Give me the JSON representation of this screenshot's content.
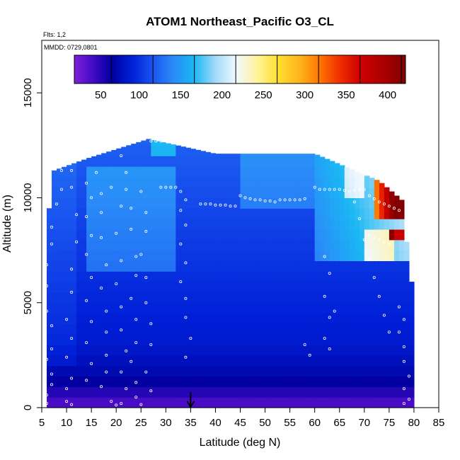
{
  "chart_data": {
    "type": "heatmap",
    "title": "ATOM1 Northeast_Pacific O3_CL",
    "annotations": [
      "Flts: 1,2",
      "MMDD: 0729,0801"
    ],
    "xlabel": "Latitude (deg N)",
    "ylabel": "Altitude (m)",
    "xlim": [
      5,
      85
    ],
    "ylim": [
      0,
      17500
    ],
    "x_ticks": [
      "5",
      "10",
      "15",
      "20",
      "25",
      "30",
      "35",
      "40",
      "45",
      "50",
      "55",
      "60",
      "65",
      "70",
      "75",
      "80",
      "85"
    ],
    "y_ticks": [
      "0",
      "5000",
      "10000",
      "15000"
    ],
    "colorbar": {
      "range": [
        5,
        405
      ],
      "ticks": [
        "50",
        "100",
        "150",
        "200",
        "250",
        "300",
        "350",
        "400"
      ],
      "placement": "top-inside"
    },
    "marker": {
      "latitude": 35,
      "symbol": "down-arrow"
    },
    "grid": false,
    "data_extent_altitude_by_latitude": [
      {
        "lat": 6.5,
        "top": 9500
      },
      {
        "lat": 7.5,
        "top": 11300
      },
      {
        "lat": 14.5,
        "top": 11900
      },
      {
        "lat": 26.5,
        "top": 12800
      },
      {
        "lat": 40,
        "top": 12100
      },
      {
        "lat": 60,
        "top": 12100
      },
      {
        "lat": 68,
        "top": 11300
      },
      {
        "lat": 73,
        "top": 10800
      },
      {
        "lat": 78,
        "top": 9800
      },
      {
        "lat": 79,
        "top": 6000
      },
      {
        "lat": 80,
        "top": 6000
      }
    ],
    "flight_track_points": [
      [
        9,
        11300
      ],
      [
        9,
        10400
      ],
      [
        8,
        9700
      ],
      [
        7,
        8600
      ],
      [
        7,
        7800
      ],
      [
        6,
        6800
      ],
      [
        6,
        5800
      ],
      [
        6,
        4600
      ],
      [
        7,
        3900
      ],
      [
        7,
        2800
      ],
      [
        6,
        2300
      ],
      [
        7,
        1600
      ],
      [
        7,
        1100
      ],
      [
        6,
        600
      ],
      [
        6,
        200
      ],
      [
        11,
        11300
      ],
      [
        11,
        10500
      ],
      [
        12,
        9200
      ],
      [
        12,
        7900
      ],
      [
        11,
        6600
      ],
      [
        11,
        5500
      ],
      [
        10,
        4200
      ],
      [
        11,
        3300
      ],
      [
        10,
        2400
      ],
      [
        11,
        1400
      ],
      [
        10,
        900
      ],
      [
        10,
        300
      ],
      [
        11,
        150
      ],
      [
        14,
        10700
      ],
      [
        15,
        10000
      ],
      [
        14,
        9100
      ],
      [
        15,
        8200
      ],
      [
        14,
        7300
      ],
      [
        15,
        6200
      ],
      [
        14,
        5100
      ],
      [
        15,
        4100
      ],
      [
        14,
        3100
      ],
      [
        15,
        2100
      ],
      [
        14,
        1300
      ],
      [
        16,
        11200
      ],
      [
        17,
        10200
      ],
      [
        17,
        9300
      ],
      [
        17,
        8100
      ],
      [
        18,
        6800
      ],
      [
        17,
        5700
      ],
      [
        18,
        4600
      ],
      [
        18,
        3600
      ],
      [
        18,
        2500
      ],
      [
        18,
        1700
      ],
      [
        17,
        1000
      ],
      [
        19,
        300
      ],
      [
        20,
        120
      ],
      [
        19,
        10500
      ],
      [
        21,
        9600
      ],
      [
        20,
        8300
      ],
      [
        21,
        7000
      ],
      [
        20,
        5900
      ],
      [
        21,
        4800
      ],
      [
        21,
        3700
      ],
      [
        22,
        2700
      ],
      [
        21,
        1700
      ],
      [
        22,
        900
      ],
      [
        21,
        200
      ],
      [
        21,
        12000
      ],
      [
        22,
        11200
      ],
      [
        22,
        10400
      ],
      [
        23,
        9500
      ],
      [
        23,
        8500
      ],
      [
        24,
        7200
      ],
      [
        24,
        6300
      ],
      [
        23,
        5200
      ],
      [
        24,
        4200
      ],
      [
        24,
        3100
      ],
      [
        23,
        2200
      ],
      [
        24,
        1200
      ],
      [
        24,
        500
      ],
      [
        25,
        150
      ],
      [
        25,
        10300
      ],
      [
        26,
        9300
      ],
      [
        26,
        8400
      ],
      [
        25,
        7300
      ],
      [
        26,
        6200
      ],
      [
        26,
        5000
      ],
      [
        27,
        4000
      ],
      [
        27,
        3000
      ],
      [
        26,
        1700
      ],
      [
        27,
        800
      ],
      [
        27,
        12700
      ],
      [
        28,
        12700
      ],
      [
        29,
        12700
      ],
      [
        30,
        12700
      ],
      [
        31,
        12700
      ],
      [
        32,
        12700
      ],
      [
        29,
        10500
      ],
      [
        30,
        10500
      ],
      [
        31,
        10500
      ],
      [
        32,
        10500
      ],
      [
        33,
        10300
      ],
      [
        34,
        9900
      ],
      [
        33,
        9400
      ],
      [
        34,
        8700
      ],
      [
        33,
        7800
      ],
      [
        34,
        6900
      ],
      [
        33,
        6000
      ],
      [
        34,
        5200
      ],
      [
        34,
        4300
      ],
      [
        35,
        3300
      ],
      [
        34,
        2400
      ],
      [
        37,
        9700
      ],
      [
        38,
        9700
      ],
      [
        39,
        9700
      ],
      [
        40,
        9650
      ],
      [
        41,
        9650
      ],
      [
        42,
        9650
      ],
      [
        43,
        9600
      ],
      [
        44,
        9600
      ],
      [
        45,
        10100
      ],
      [
        46,
        10000
      ],
      [
        47,
        9950
      ],
      [
        48,
        9900
      ],
      [
        49,
        9900
      ],
      [
        50,
        9850
      ],
      [
        51,
        9850
      ],
      [
        52,
        9800
      ],
      [
        53,
        9900
      ],
      [
        54,
        9900
      ],
      [
        55,
        9900
      ],
      [
        56,
        9900
      ],
      [
        57,
        9900
      ],
      [
        58,
        9950
      ],
      [
        60,
        10500
      ],
      [
        61,
        10400
      ],
      [
        62,
        10400
      ],
      [
        63,
        10400
      ],
      [
        64,
        10400
      ],
      [
        65,
        10400
      ],
      [
        66,
        10350
      ],
      [
        67,
        10300
      ],
      [
        68,
        10350
      ],
      [
        69,
        10400
      ],
      [
        70,
        10400
      ],
      [
        71,
        10100
      ],
      [
        72,
        9950
      ],
      [
        73,
        9800
      ],
      [
        74,
        9700
      ],
      [
        75,
        9600
      ],
      [
        76,
        9500
      ],
      [
        77,
        9400
      ],
      [
        71,
        8200
      ],
      [
        72,
        8100
      ],
      [
        73,
        8000
      ],
      [
        74,
        7900
      ],
      [
        75,
        7800
      ],
      [
        68,
        9800
      ],
      [
        69,
        9000
      ],
      [
        70,
        8000
      ],
      [
        71,
        7100
      ],
      [
        72,
        6200
      ],
      [
        73,
        5300
      ],
      [
        74,
        4400
      ],
      [
        75,
        3600
      ],
      [
        62,
        7200
      ],
      [
        63,
        6400
      ],
      [
        62,
        5300
      ],
      [
        63,
        4300
      ],
      [
        62,
        3300
      ],
      [
        63,
        2800
      ],
      [
        77,
        4800
      ],
      [
        78,
        4200
      ],
      [
        77,
        3600
      ],
      [
        78,
        2900
      ],
      [
        78,
        2200
      ],
      [
        79,
        1500
      ],
      [
        78,
        900
      ],
      [
        79,
        400
      ],
      [
        78,
        200
      ],
      [
        58,
        3000
      ],
      [
        59,
        2500
      ],
      [
        64,
        4600
      ]
    ]
  }
}
